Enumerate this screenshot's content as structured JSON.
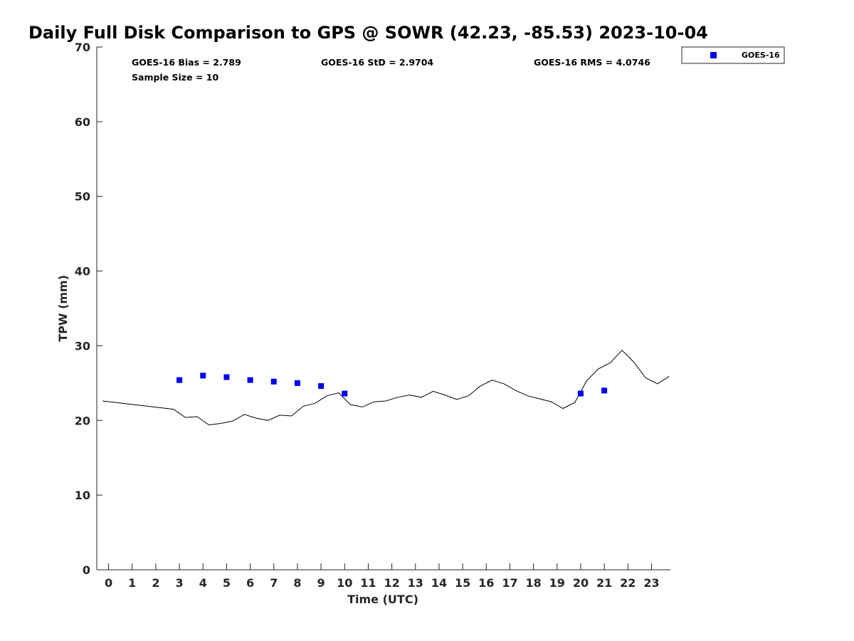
{
  "chart_data": {
    "type": "scatter",
    "title": "Daily Full Disk Comparison to GPS @ SOWR (42.23, -85.53) 2023-10-04",
    "xlabel": "Time (UTC)",
    "ylabel": "TPW (mm)",
    "xlim": [
      -0.5,
      23.8
    ],
    "ylim": [
      0,
      70
    ],
    "x_ticks": [
      0,
      1,
      2,
      3,
      4,
      5,
      6,
      7,
      8,
      9,
      10,
      11,
      12,
      13,
      14,
      15,
      16,
      17,
      18,
      19,
      20,
      21,
      22,
      23
    ],
    "y_ticks": [
      0,
      10,
      20,
      30,
      40,
      50,
      60,
      70
    ],
    "grid": false,
    "legend_position": "top-right outside",
    "stats": {
      "bias": "GOES-16 Bias = 2.789",
      "std": "GOES-16 StD = 2.9704",
      "rms": "GOES-16 RMS = 4.0746",
      "sample_size": "Sample Size = 10"
    },
    "series": [
      {
        "name": "GOES-16",
        "kind": "markers",
        "color": "#0000ee",
        "marker": "square",
        "x": [
          3,
          4,
          5,
          6,
          7,
          8,
          9,
          10,
          20,
          21
        ],
        "y": [
          25.4,
          26.0,
          25.8,
          25.4,
          25.2,
          25.0,
          24.6,
          23.6,
          23.6,
          24.0
        ]
      },
      {
        "kind": "line",
        "color": "#000000",
        "x": [
          -0.25,
          2.75,
          3.25,
          3.75,
          4.25,
          4.75,
          5.25,
          5.75,
          6.25,
          6.75,
          7.25,
          7.75,
          8.25,
          8.75,
          9.25,
          9.75,
          10.25,
          10.75,
          11.25,
          11.75,
          12.25,
          12.75,
          13.25,
          13.75,
          14.25,
          14.75,
          15.25,
          15.75,
          16.25,
          16.75,
          17.25,
          17.75,
          18.25,
          18.75,
          19.25,
          19.75,
          20.25,
          20.75,
          21.25,
          21.75,
          22.25,
          22.75,
          23.25,
          23.75
        ],
        "y": [
          22.6,
          21.5,
          20.4,
          20.5,
          19.4,
          19.6,
          19.9,
          20.8,
          20.3,
          20.0,
          20.7,
          20.6,
          21.9,
          22.3,
          23.3,
          23.7,
          22.1,
          21.8,
          22.5,
          22.6,
          23.1,
          23.4,
          23.1,
          23.9,
          23.4,
          22.8,
          23.3,
          24.6,
          25.4,
          24.9,
          24.0,
          23.3,
          22.9,
          22.5,
          21.6,
          22.4,
          25.3,
          26.9,
          27.7,
          29.4,
          27.8,
          25.7,
          24.9,
          25.9
        ]
      }
    ]
  }
}
